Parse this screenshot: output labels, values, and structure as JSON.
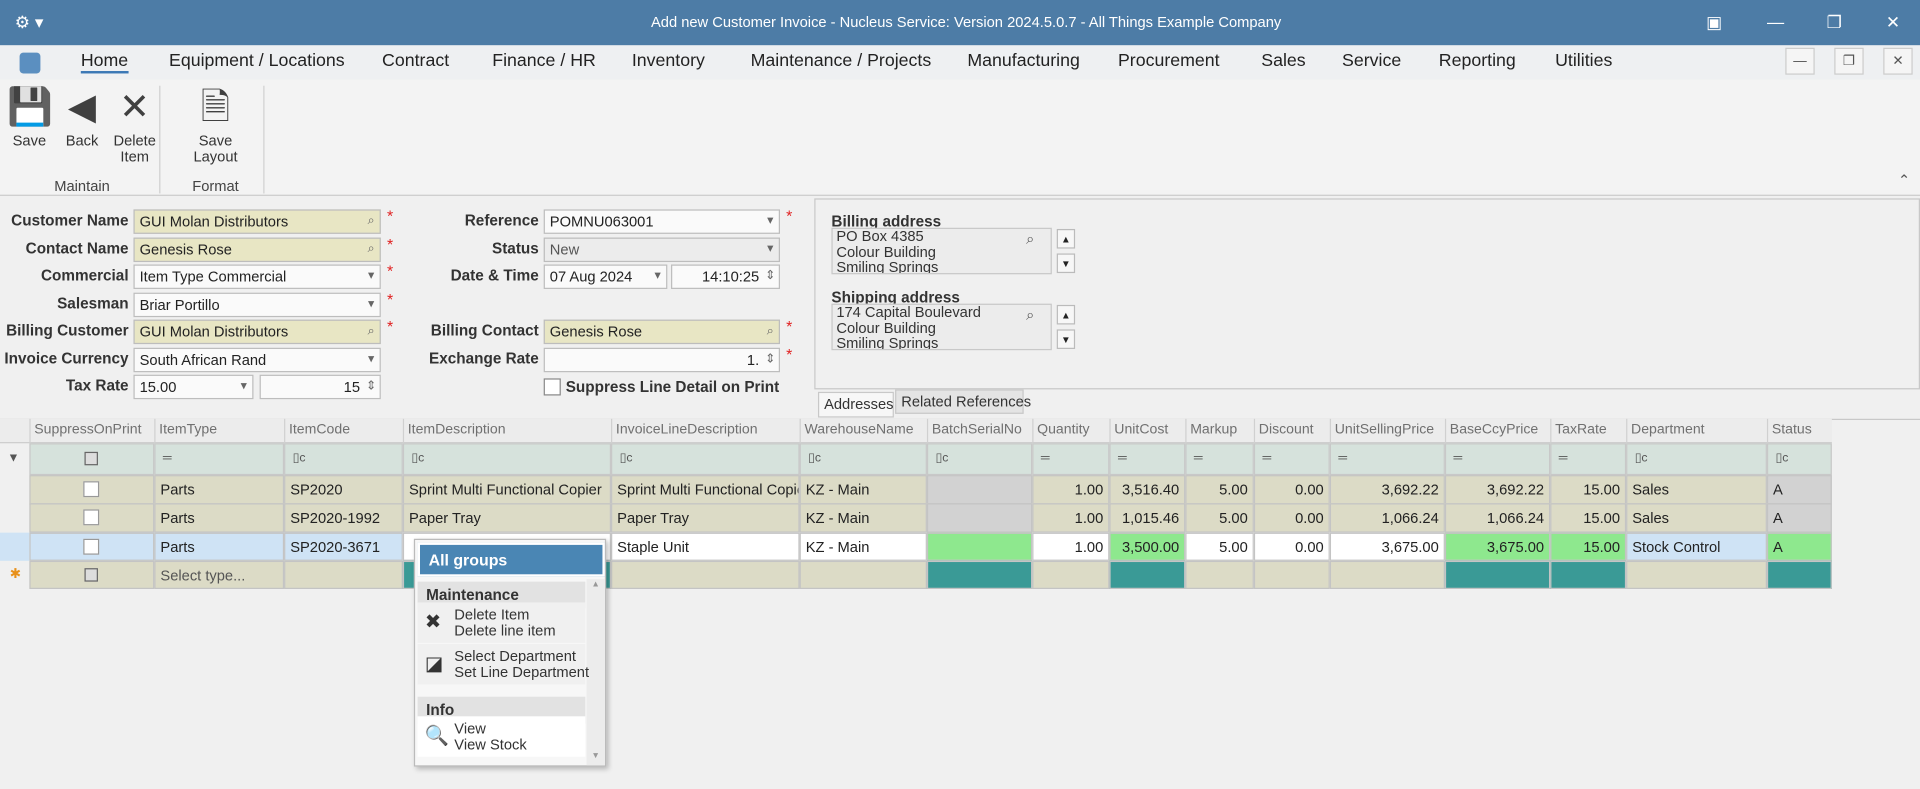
{
  "window": {
    "title": "Add new Customer Invoice - Nucleus Service: Version 2024.5.0.7 - All Things Example Company"
  },
  "menu": [
    "Home",
    "Equipment / Locations",
    "Contract",
    "Finance / HR",
    "Inventory",
    "Maintenance / Projects",
    "Manufacturing",
    "Procurement",
    "Sales",
    "Service",
    "Reporting",
    "Utilities"
  ],
  "ribbon": {
    "groups": [
      {
        "label": "Maintain",
        "buttons": [
          "Save",
          "Back",
          "Delete Item"
        ]
      },
      {
        "label": "Format",
        "buttons": [
          "Save Layout"
        ]
      }
    ]
  },
  "form": {
    "left": [
      {
        "label": "Customer Name",
        "value": "GUI Molan Distributors"
      },
      {
        "label": "Contact Name",
        "value": "Genesis Rose"
      },
      {
        "label": "Commercial",
        "value": "Item Type Commercial"
      },
      {
        "label": "Salesman",
        "value": "Briar Portillo"
      },
      {
        "label": "Billing Customer",
        "value": "GUI Molan Distributors"
      },
      {
        "label": "Invoice Currency",
        "value": "South African Rand"
      },
      {
        "label": "Tax Rate",
        "value": "15.00",
        "value2": "15"
      }
    ],
    "right": [
      {
        "label": "Reference",
        "value": "POMNU063001"
      },
      {
        "label": "Status",
        "value": "New"
      },
      {
        "label": "Date & Time",
        "value": "07 Aug 2024",
        "value2": "14:10:25"
      },
      {
        "label": "Billing Contact",
        "value": "Genesis Rose"
      },
      {
        "label": "Exchange Rate",
        "value": "1."
      }
    ],
    "suppress_label": "Suppress Line Detail on Print"
  },
  "addresses": {
    "billing_label": "Billing address",
    "billing_lines": [
      "PO Box 4385",
      "Colour Building",
      "Smiling Springs"
    ],
    "shipping_label": "Shipping address",
    "shipping_lines": [
      "174 Capital Boulevard",
      "Colour Building",
      "Smiling Springs"
    ],
    "tabs": [
      "Addresses",
      "Related References"
    ]
  },
  "grid": {
    "columns": [
      "SuppressOnPrint",
      "ItemType",
      "ItemCode",
      "ItemDescription",
      "InvoiceLineDescription",
      "WarehouseName",
      "BatchSerialNo",
      "Quantity",
      "UnitCost",
      "Markup",
      "Discount",
      "UnitSellingPrice",
      "BaseCcyPrice",
      "TaxRate",
      "Department",
      "Status"
    ],
    "rows": [
      [
        null,
        "Parts",
        "SP2020",
        "Sprint Multi Functional Copier",
        "Sprint Multi Functional Copier",
        "KZ - Main",
        null,
        "1.00",
        "3,516.40",
        "5.00",
        "0.00",
        "3,692.22",
        "3,692.22",
        "15.00",
        "Sales",
        "A"
      ],
      [
        null,
        "Parts",
        "SP2020-1992",
        "Paper Tray",
        "Paper Tray",
        "KZ - Main",
        null,
        "1.00",
        "1,015.46",
        "5.00",
        "0.00",
        "1,066.24",
        "1,066.24",
        "15.00",
        "Sales",
        "A"
      ],
      [
        null,
        "Parts",
        "SP2020-3671",
        null,
        "Staple Unit",
        "KZ - Main",
        null,
        "1.00",
        "3,500.00",
        "5.00",
        "0.00",
        "3,675.00",
        "3,675.00",
        "15.00",
        "Stock Control",
        "A"
      ]
    ],
    "new_row_placeholder": "Select type..."
  },
  "context_menu": {
    "header": "All groups",
    "sections": [
      {
        "title": "Maintenance",
        "items": [
          {
            "title": "Delete Item",
            "subtitle": "Delete line item"
          },
          {
            "title": "Select Department",
            "subtitle": "Set Line Department"
          }
        ]
      },
      {
        "title": "Info",
        "items": [
          {
            "title": "View",
            "subtitle": "View Stock"
          }
        ]
      }
    ]
  }
}
